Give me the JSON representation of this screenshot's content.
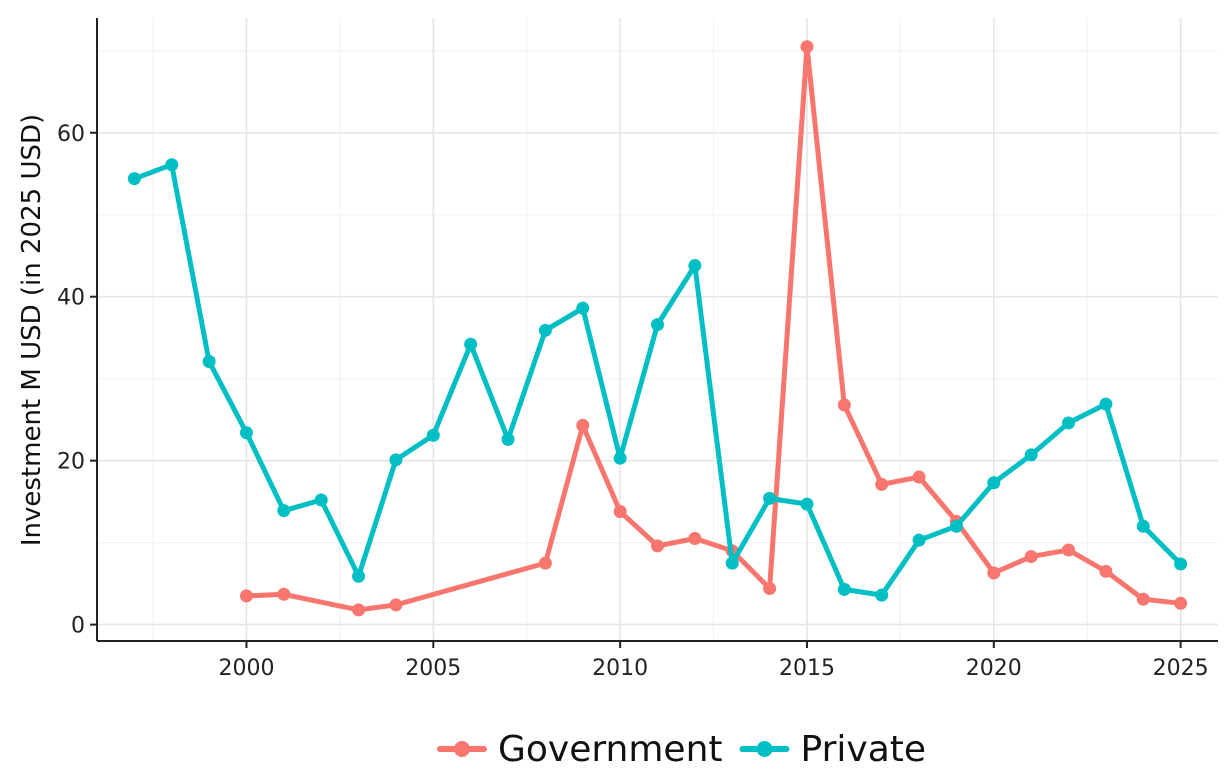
{
  "chart_data": {
    "type": "line",
    "title": "",
    "xlabel": "",
    "ylabel": "Investment M USD (in 2025 USD)",
    "xlim": [
      1996,
      2026
    ],
    "ylim": [
      -2,
      74
    ],
    "xticks": [
      2000,
      2005,
      2010,
      2015,
      2020,
      2025
    ],
    "yticks": [
      0,
      20,
      40,
      60
    ],
    "xtick_labels": [
      "2000",
      "2005",
      "2010",
      "2015",
      "2020",
      "2025"
    ],
    "ytick_labels": [
      "0",
      "20",
      "40",
      "60"
    ],
    "grid": true,
    "legend_position": "bottom",
    "series": [
      {
        "name": "Government",
        "color": "#F8766D",
        "x": [
          2000,
          2001,
          2003,
          2004,
          2008,
          2009,
          2010,
          2011,
          2012,
          2013,
          2014,
          2015,
          2016,
          2017,
          2018,
          2019,
          2020,
          2021,
          2022,
          2023,
          2024,
          2025
        ],
        "y": [
          3.5,
          3.7,
          1.8,
          2.4,
          7.5,
          24.3,
          13.8,
          9.6,
          10.5,
          9.0,
          4.4,
          70.5,
          26.8,
          17.1,
          18.0,
          12.6,
          6.3,
          8.3,
          9.1,
          6.5,
          3.1,
          2.6
        ]
      },
      {
        "name": "Private",
        "color": "#00BFC4",
        "x": [
          1997,
          1998,
          1999,
          2000,
          2001,
          2002,
          2003,
          2004,
          2005,
          2006,
          2007,
          2008,
          2009,
          2010,
          2011,
          2012,
          2013,
          2014,
          2015,
          2016,
          2017,
          2018,
          2019,
          2020,
          2021,
          2022,
          2023,
          2024,
          2025
        ],
        "y": [
          54.4,
          56.1,
          32.1,
          23.4,
          13.9,
          15.2,
          5.9,
          20.1,
          23.1,
          34.2,
          22.6,
          35.9,
          38.6,
          20.3,
          36.6,
          43.8,
          7.5,
          15.4,
          14.7,
          4.3,
          3.6,
          10.3,
          12.0,
          17.3,
          20.7,
          24.6,
          26.9,
          12.0,
          7.4
        ]
      }
    ]
  }
}
